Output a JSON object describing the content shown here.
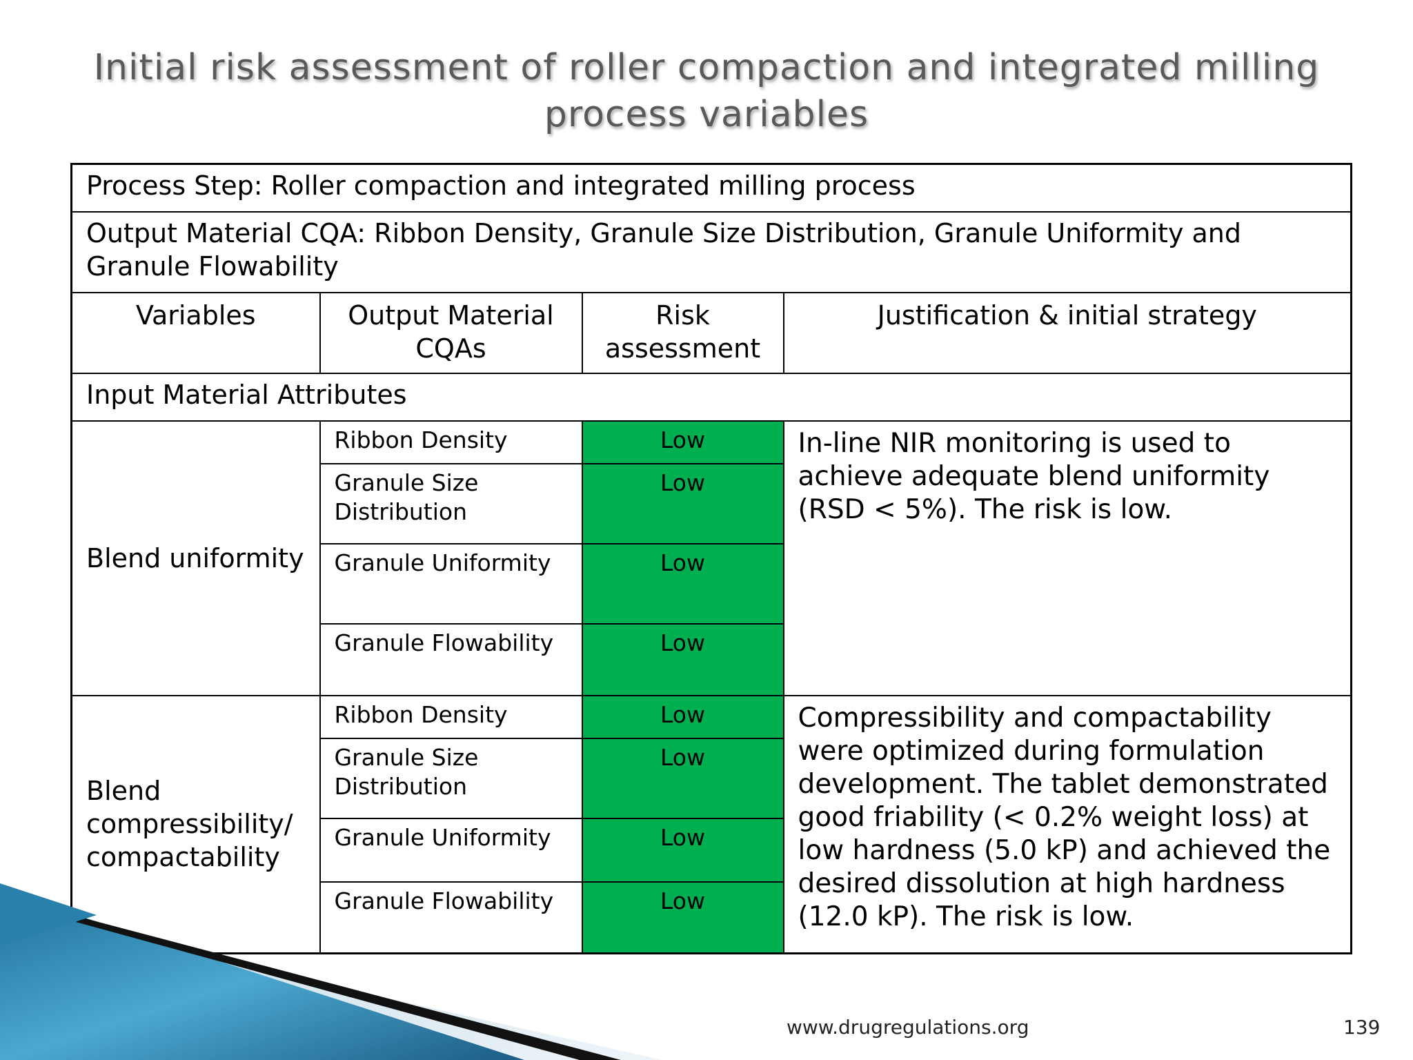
{
  "slide": {
    "title": "Initial risk assessment of roller compaction and integrated milling process variables",
    "footer_url": "www.drugregulations.org",
    "page_number": "139"
  },
  "table": {
    "process_step": "Process Step: Roller compaction and integrated milling process",
    "output_cqa": "Output Material CQA: Ribbon Density, Granule Size Distribution, Granule Uniformity and Granule Flowability",
    "headers": {
      "variables": "Variables",
      "output_cqas": "Output Material CQAs",
      "risk": "Risk assessment",
      "justification": "Justification & initial strategy"
    },
    "section_label": "Input Material Attributes",
    "groups": [
      {
        "variable": "Blend uniformity",
        "rows": [
          {
            "cqa": "Ribbon Density",
            "risk": "Low"
          },
          {
            "cqa": "Granule Size Distribution",
            "risk": "Low"
          },
          {
            "cqa": "Granule Uniformity",
            "risk": "Low"
          },
          {
            "cqa": "Granule Flowability",
            "risk": "Low"
          }
        ],
        "justification": "In-line NIR monitoring is used to achieve adequate blend uniformity (RSD < 5%). The risk is low."
      },
      {
        "variable": "Blend compressibility/ compactability",
        "rows": [
          {
            "cqa": "Ribbon Density",
            "risk": "Low"
          },
          {
            "cqa": "Granule Size Distribution",
            "risk": "Low"
          },
          {
            "cqa": "Granule Uniformity",
            "risk": "Low"
          },
          {
            "cqa": "Granule Flowability",
            "risk": "Low"
          }
        ],
        "justification": "Compressibility and compactability were optimized during formulation development. The tablet demonstrated good friability (< 0.2% weight loss) at low hardness (5.0 kP) and achieved the desired dissolution at high hardness (12.0 kP). The risk is low."
      }
    ]
  },
  "colors": {
    "low_risk": "#00b050",
    "title_text": "#595959"
  }
}
